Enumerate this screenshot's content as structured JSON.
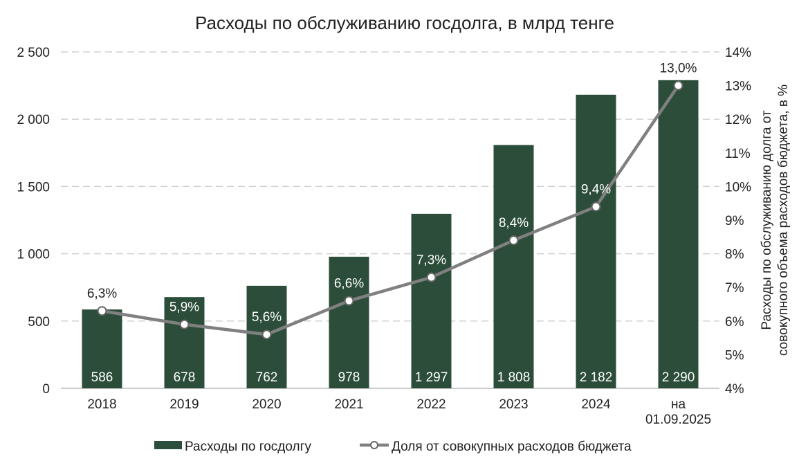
{
  "chart_data": {
    "type": "bar+line",
    "title": "Расходы по обслуживанию госдолга, в млрд тенге",
    "categories": [
      "2018",
      "2019",
      "2020",
      "2021",
      "2022",
      "2023",
      "2024",
      "на 01.09.2025"
    ],
    "series": [
      {
        "name": "Расходы по госдолгу",
        "type": "bar",
        "axis": "left",
        "values": [
          586,
          678,
          762,
          978,
          1297,
          1808,
          2182,
          2290
        ],
        "labels": [
          "586",
          "678",
          "762",
          "978",
          "1 297",
          "1 808",
          "2 182",
          "2 290"
        ],
        "color": "#2b4d39"
      },
      {
        "name": "Доля от совокупных расходов бюджета",
        "type": "line",
        "axis": "right",
        "values": [
          6.3,
          5.9,
          5.6,
          6.6,
          7.3,
          8.4,
          9.4,
          13.0
        ],
        "labels": [
          "6,3%",
          "5,9%",
          "5,6%",
          "6,6%",
          "7,3%",
          "8,4%",
          "9,4%",
          "13,0%"
        ],
        "color": "#808080"
      }
    ],
    "ylim": [
      0,
      2500
    ],
    "yticks": [
      "0",
      "500",
      "1 000",
      "1 500",
      "2 000",
      "2 500"
    ],
    "y2lim": [
      4,
      14
    ],
    "y2ticks": [
      "4%",
      "5%",
      "6%",
      "7%",
      "8%",
      "9%",
      "10%",
      "11%",
      "12%",
      "13%",
      "14%"
    ],
    "y2label_lines": [
      "Расходы по обслуживанию долга от",
      "совокупного объема  расходов бюджета, в %"
    ],
    "grid": true,
    "legend_position": "bottom"
  }
}
